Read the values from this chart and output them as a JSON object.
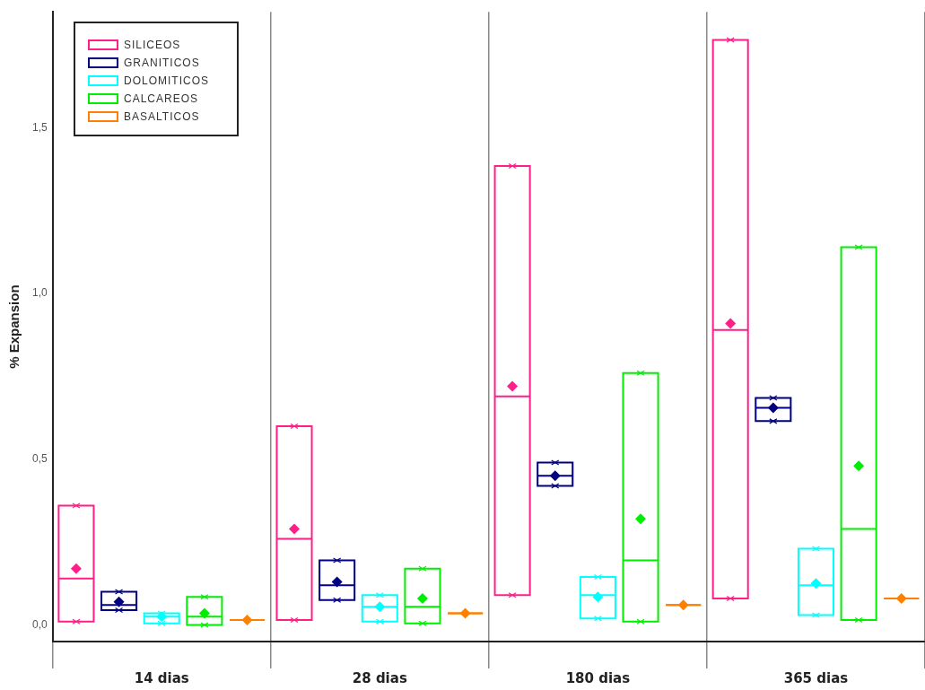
{
  "chart_data": {
    "type": "box",
    "ylabel": "% Expansion",
    "categories": [
      "14 dias",
      "28 dias",
      "180 dias",
      "365 dias"
    ],
    "ylim": [
      -0.05,
      1.85
    ],
    "yticks": [
      {
        "value": 0,
        "label": "0,0"
      },
      {
        "value": 0.5,
        "label": "0,5"
      },
      {
        "value": 1,
        "label": "1,0"
      },
      {
        "value": 1.5,
        "label": "1,5"
      }
    ],
    "grid": "x",
    "legend": "top left",
    "series": [
      {
        "name": "SILICEOS",
        "color": "#ff1f8a",
        "boxes": [
          {
            "low": 0.01,
            "q1": 0.01,
            "median": 0.14,
            "q3": 0.36,
            "high": 0.36,
            "mean": 0.17
          },
          {
            "low": 0.015,
            "q1": 0.015,
            "median": 0.26,
            "q3": 0.6,
            "high": 0.6,
            "mean": 0.29
          },
          {
            "low": 0.09,
            "q1": 0.09,
            "median": 0.69,
            "q3": 1.385,
            "high": 1.385,
            "mean": 0.72
          },
          {
            "low": 0.08,
            "q1": 0.08,
            "median": 0.89,
            "q3": 1.765,
            "high": 1.765,
            "mean": 0.91
          }
        ]
      },
      {
        "name": "GRANITICOS",
        "color": "#000080",
        "boxes": [
          {
            "low": 0.045,
            "q1": 0.045,
            "median": 0.06,
            "q3": 0.1,
            "high": 0.1,
            "mean": 0.07
          },
          {
            "low": 0.075,
            "q1": 0.075,
            "median": 0.12,
            "q3": 0.195,
            "high": 0.195,
            "mean": 0.13
          },
          {
            "low": 0.42,
            "q1": 0.42,
            "median": 0.45,
            "q3": 0.49,
            "high": 0.49,
            "mean": 0.45
          },
          {
            "low": 0.615,
            "q1": 0.615,
            "median": 0.655,
            "q3": 0.685,
            "high": 0.685,
            "mean": 0.655
          }
        ]
      },
      {
        "name": "DOLOMITICOS",
        "color": "#00ffff",
        "boxes": [
          {
            "low": 0.005,
            "q1": 0.005,
            "median": 0.025,
            "q3": 0.035,
            "high": 0.035,
            "mean": 0.025
          },
          {
            "low": 0.01,
            "q1": 0.01,
            "median": 0.055,
            "q3": 0.09,
            "high": 0.09,
            "mean": 0.055
          },
          {
            "low": 0.02,
            "q1": 0.02,
            "median": 0.09,
            "q3": 0.145,
            "high": 0.145,
            "mean": 0.085
          },
          {
            "low": 0.03,
            "q1": 0.03,
            "median": 0.12,
            "q3": 0.23,
            "high": 0.23,
            "mean": 0.125
          }
        ]
      },
      {
        "name": "CALCAREOS",
        "color": "#00ee00",
        "boxes": [
          {
            "low": 0.0,
            "q1": 0.0,
            "median": 0.025,
            "q3": 0.085,
            "high": 0.085,
            "mean": 0.035
          },
          {
            "low": 0.005,
            "q1": 0.005,
            "median": 0.055,
            "q3": 0.17,
            "high": 0.17,
            "mean": 0.08
          },
          {
            "low": 0.01,
            "q1": 0.01,
            "median": 0.195,
            "q3": 0.76,
            "high": 0.76,
            "mean": 0.32
          },
          {
            "low": 0.015,
            "q1": 0.015,
            "median": 0.29,
            "q3": 1.14,
            "high": 1.14,
            "mean": 0.48
          }
        ]
      },
      {
        "name": "BASALTICOS",
        "color": "#ff8000",
        "boxes": [
          {
            "low": 0.015,
            "q1": 0.015,
            "median": 0.015,
            "q3": 0.015,
            "high": 0.015,
            "mean": 0.015
          },
          {
            "low": 0.035,
            "q1": 0.035,
            "median": 0.035,
            "q3": 0.035,
            "high": 0.035,
            "mean": 0.035
          },
          {
            "low": 0.06,
            "q1": 0.06,
            "median": 0.06,
            "q3": 0.06,
            "high": 0.06,
            "mean": 0.06
          },
          {
            "low": 0.08,
            "q1": 0.08,
            "median": 0.08,
            "q3": 0.08,
            "high": 0.08,
            "mean": 0.08
          }
        ]
      }
    ]
  }
}
